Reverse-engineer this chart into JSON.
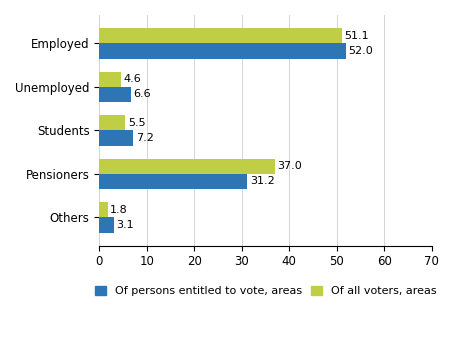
{
  "categories": [
    "Others",
    "Pensioners",
    "Students",
    "Unemployed",
    "Employed"
  ],
  "voters_values": [
    1.8,
    37.0,
    5.5,
    4.6,
    51.1
  ],
  "entitled_values": [
    3.1,
    31.2,
    7.2,
    6.6,
    52.0
  ],
  "color_entitled": "#2E75B6",
  "color_voters": "#BFCE45",
  "xlim": [
    0,
    70
  ],
  "xticks": [
    0,
    10,
    20,
    30,
    40,
    50,
    60,
    70
  ],
  "legend_entitled": "Of persons entitled to vote, areas",
  "legend_voters": "Of all voters, areas",
  "bar_height": 0.35,
  "tick_fontsize": 8.5,
  "legend_fontsize": 8,
  "value_fontsize": 8
}
